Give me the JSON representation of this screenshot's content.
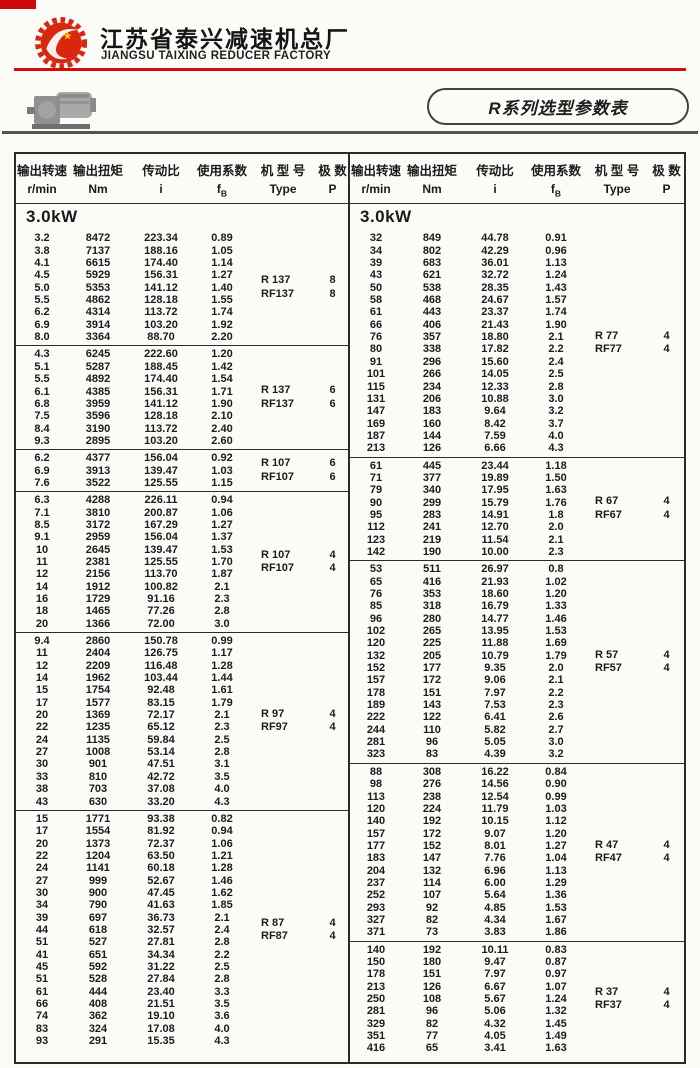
{
  "header": {
    "company_cn": "江苏省泰兴减速机总厂",
    "company_en": "JIANGSU TAIXING REDUCER FACTORY",
    "badge": "R系列选型参数表"
  },
  "table": {
    "power_label": "3.0kW",
    "columns": [
      {
        "cn": "输出转速",
        "unit": "r/min"
      },
      {
        "cn": "输出扭矩",
        "unit": "Nm"
      },
      {
        "cn": "传动比",
        "unit": "i"
      },
      {
        "cn": "使用系数",
        "unit": "fB"
      },
      {
        "cn": "机 型 号",
        "unit": "Type"
      },
      {
        "cn": "极 数",
        "unit": "P"
      }
    ],
    "left_groups": [
      {
        "types": [
          "R 137",
          "RF137"
        ],
        "poles": [
          "8",
          "8"
        ],
        "rows": [
          [
            "3.2",
            "8472",
            "223.34",
            "0.89"
          ],
          [
            "3.8",
            "7137",
            "188.16",
            "1.05"
          ],
          [
            "4.1",
            "6615",
            "174.40",
            "1.14"
          ],
          [
            "4.5",
            "5929",
            "156.31",
            "1.27"
          ],
          [
            "5.0",
            "5353",
            "141.12",
            "1.40"
          ],
          [
            "5.5",
            "4862",
            "128.18",
            "1.55"
          ],
          [
            "6.2",
            "4314",
            "113.72",
            "1.74"
          ],
          [
            "6.9",
            "3914",
            "103.20",
            "1.92"
          ],
          [
            "8.0",
            "3364",
            "88.70",
            "2.20"
          ]
        ]
      },
      {
        "types": [
          "R 137",
          "RF137"
        ],
        "poles": [
          "6",
          "6"
        ],
        "rows": [
          [
            "4.3",
            "6245",
            "222.60",
            "1.20"
          ],
          [
            "5.1",
            "5287",
            "188.45",
            "1.42"
          ],
          [
            "5.5",
            "4892",
            "174.40",
            "1.54"
          ],
          [
            "6.1",
            "4385",
            "156.31",
            "1.71"
          ],
          [
            "6.8",
            "3959",
            "141.12",
            "1.90"
          ],
          [
            "7.5",
            "3596",
            "128.18",
            "2.10"
          ],
          [
            "8.4",
            "3190",
            "113.72",
            "2.40"
          ],
          [
            "9.3",
            "2895",
            "103.20",
            "2.60"
          ]
        ]
      },
      {
        "types": [
          "R 107",
          "RF107"
        ],
        "poles": [
          "6",
          "6"
        ],
        "rows": [
          [
            "6.2",
            "4377",
            "156.04",
            "0.92"
          ],
          [
            "6.9",
            "3913",
            "139.47",
            "1.03"
          ],
          [
            "7.6",
            "3522",
            "125.55",
            "1.15"
          ]
        ]
      },
      {
        "types": [
          "R 107",
          "RF107"
        ],
        "poles": [
          "4",
          "4"
        ],
        "rows": [
          [
            "6.3",
            "4288",
            "226.11",
            "0.94"
          ],
          [
            "7.1",
            "3810",
            "200.87",
            "1.06"
          ],
          [
            "8.5",
            "3172",
            "167.29",
            "1.27"
          ],
          [
            "9.1",
            "2959",
            "156.04",
            "1.37"
          ],
          [
            "10",
            "2645",
            "139.47",
            "1.53"
          ],
          [
            "11",
            "2381",
            "125.55",
            "1.70"
          ],
          [
            "12",
            "2156",
            "113.70",
            "1.87"
          ],
          [
            "14",
            "1912",
            "100.82",
            "2.1"
          ],
          [
            "16",
            "1729",
            "91.16",
            "2.3"
          ],
          [
            "18",
            "1465",
            "77.26",
            "2.8"
          ],
          [
            "20",
            "1366",
            "72.00",
            "3.0"
          ]
        ]
      },
      {
        "types": [
          "R 97",
          "RF97"
        ],
        "poles": [
          "4",
          "4"
        ],
        "rows": [
          [
            "9.4",
            "2860",
            "150.78",
            "0.99"
          ],
          [
            "11",
            "2404",
            "126.75",
            "1.17"
          ],
          [
            "12",
            "2209",
            "116.48",
            "1.28"
          ],
          [
            "14",
            "1962",
            "103.44",
            "1.44"
          ],
          [
            "15",
            "1754",
            "92.48",
            "1.61"
          ],
          [
            "17",
            "1577",
            "83.15",
            "1.79"
          ],
          [
            "20",
            "1369",
            "72.17",
            "2.1"
          ],
          [
            "22",
            "1235",
            "65.12",
            "2.3"
          ],
          [
            "24",
            "1135",
            "59.84",
            "2.5"
          ],
          [
            "27",
            "1008",
            "53.14",
            "2.8"
          ],
          [
            "30",
            "901",
            "47.51",
            "3.1"
          ],
          [
            "33",
            "810",
            "42.72",
            "3.5"
          ],
          [
            "38",
            "703",
            "37.08",
            "4.0"
          ],
          [
            "43",
            "630",
            "33.20",
            "4.3"
          ]
        ]
      },
      {
        "types": [
          "R 87",
          "RF87"
        ],
        "poles": [
          "4",
          "4"
        ],
        "rows": [
          [
            "15",
            "1771",
            "93.38",
            "0.82"
          ],
          [
            "17",
            "1554",
            "81.92",
            "0.94"
          ],
          [
            "20",
            "1373",
            "72.37",
            "1.06"
          ],
          [
            "22",
            "1204",
            "63.50",
            "1.21"
          ],
          [
            "24",
            "1141",
            "60.18",
            "1.28"
          ],
          [
            "27",
            "999",
            "52.67",
            "1.46"
          ],
          [
            "30",
            "900",
            "47.45",
            "1.62"
          ],
          [
            "34",
            "790",
            "41.63",
            "1.85"
          ],
          [
            "39",
            "697",
            "36.73",
            "2.1"
          ],
          [
            "44",
            "618",
            "32.57",
            "2.4"
          ],
          [
            "51",
            "527",
            "27.81",
            "2.8"
          ],
          [
            "41",
            "651",
            "34.34",
            "2.2"
          ],
          [
            "45",
            "592",
            "31.22",
            "2.5"
          ],
          [
            "51",
            "528",
            "27.84",
            "2.8"
          ],
          [
            "61",
            "444",
            "23.40",
            "3.3"
          ],
          [
            "66",
            "408",
            "21.51",
            "3.5"
          ],
          [
            "74",
            "362",
            "19.10",
            "3.6"
          ],
          [
            "83",
            "324",
            "17.08",
            "4.0"
          ],
          [
            "93",
            "291",
            "15.35",
            "4.3"
          ]
        ]
      }
    ],
    "right_groups": [
      {
        "types": [
          "R 77",
          "RF77"
        ],
        "poles": [
          "4",
          "4"
        ],
        "rows": [
          [
            "32",
            "849",
            "44.78",
            "0.91"
          ],
          [
            "34",
            "802",
            "42.29",
            "0.96"
          ],
          [
            "39",
            "683",
            "36.01",
            "1.13"
          ],
          [
            "43",
            "621",
            "32.72",
            "1.24"
          ],
          [
            "50",
            "538",
            "28.35",
            "1.43"
          ],
          [
            "58",
            "468",
            "24.67",
            "1.57"
          ],
          [
            "61",
            "443",
            "23.37",
            "1.74"
          ],
          [
            "66",
            "406",
            "21.43",
            "1.90"
          ],
          [
            "76",
            "357",
            "18.80",
            "2.1"
          ],
          [
            "80",
            "338",
            "17.82",
            "2.2"
          ],
          [
            "91",
            "296",
            "15.60",
            "2.4"
          ],
          [
            "101",
            "266",
            "14.05",
            "2.5"
          ],
          [
            "115",
            "234",
            "12.33",
            "2.8"
          ],
          [
            "131",
            "206",
            "10.88",
            "3.0"
          ],
          [
            "147",
            "183",
            "9.64",
            "3.2"
          ],
          [
            "169",
            "160",
            "8.42",
            "3.7"
          ],
          [
            "187",
            "144",
            "7.59",
            "4.0"
          ],
          [
            "213",
            "126",
            "6.66",
            "4.3"
          ]
        ]
      },
      {
        "types": [
          "R 67",
          "RF67"
        ],
        "poles": [
          "4",
          "4"
        ],
        "rows": [
          [
            "61",
            "445",
            "23.44",
            "1.18"
          ],
          [
            "71",
            "377",
            "19.89",
            "1.50"
          ],
          [
            "79",
            "340",
            "17.95",
            "1.63"
          ],
          [
            "90",
            "299",
            "15.79",
            "1.76"
          ],
          [
            "95",
            "283",
            "14.91",
            "1.8"
          ],
          [
            "112",
            "241",
            "12.70",
            "2.0"
          ],
          [
            "123",
            "219",
            "11.54",
            "2.1"
          ],
          [
            "142",
            "190",
            "10.00",
            "2.3"
          ]
        ]
      },
      {
        "types": [
          "R 57",
          "RF57"
        ],
        "poles": [
          "4",
          "4"
        ],
        "rows": [
          [
            "53",
            "511",
            "26.97",
            "0.8"
          ],
          [
            "65",
            "416",
            "21.93",
            "1.02"
          ],
          [
            "76",
            "353",
            "18.60",
            "1.20"
          ],
          [
            "85",
            "318",
            "16.79",
            "1.33"
          ],
          [
            "96",
            "280",
            "14.77",
            "1.46"
          ],
          [
            "102",
            "265",
            "13.95",
            "1.53"
          ],
          [
            "120",
            "225",
            "11.88",
            "1.69"
          ],
          [
            "132",
            "205",
            "10.79",
            "1.79"
          ],
          [
            "152",
            "177",
            "9.35",
            "2.0"
          ],
          [
            "157",
            "172",
            "9.06",
            "2.1"
          ],
          [
            "178",
            "151",
            "7.97",
            "2.2"
          ],
          [
            "189",
            "143",
            "7.53",
            "2.3"
          ],
          [
            "222",
            "122",
            "6.41",
            "2.6"
          ],
          [
            "244",
            "110",
            "5.82",
            "2.7"
          ],
          [
            "281",
            "96",
            "5.05",
            "3.0"
          ],
          [
            "323",
            "83",
            "4.39",
            "3.2"
          ]
        ]
      },
      {
        "types": [
          "R 47",
          "RF47"
        ],
        "poles": [
          "4",
          "4"
        ],
        "rows": [
          [
            "88",
            "308",
            "16.22",
            "0.84"
          ],
          [
            "98",
            "276",
            "14.56",
            "0.90"
          ],
          [
            "113",
            "238",
            "12.54",
            "0.99"
          ],
          [
            "120",
            "224",
            "11.79",
            "1.03"
          ],
          [
            "140",
            "192",
            "10.15",
            "1.12"
          ],
          [
            "157",
            "172",
            "9.07",
            "1.20"
          ],
          [
            "177",
            "152",
            "8.01",
            "1.27"
          ],
          [
            "183",
            "147",
            "7.76",
            "1.04"
          ],
          [
            "204",
            "132",
            "6.96",
            "1.13"
          ],
          [
            "237",
            "114",
            "6.00",
            "1.29"
          ],
          [
            "252",
            "107",
            "5.64",
            "1.36"
          ],
          [
            "293",
            "92",
            "4.85",
            "1.53"
          ],
          [
            "327",
            "82",
            "4.34",
            "1.67"
          ],
          [
            "371",
            "73",
            "3.83",
            "1.86"
          ]
        ]
      },
      {
        "types": [
          "R 37",
          "RF37"
        ],
        "poles": [
          "4",
          "4"
        ],
        "rows": [
          [
            "140",
            "192",
            "10.11",
            "0.83"
          ],
          [
            "150",
            "180",
            "9.47",
            "0.87"
          ],
          [
            "178",
            "151",
            "7.97",
            "0.97"
          ],
          [
            "213",
            "126",
            "6.67",
            "1.07"
          ],
          [
            "250",
            "108",
            "5.67",
            "1.24"
          ],
          [
            "281",
            "96",
            "5.06",
            "1.32"
          ],
          [
            "329",
            "82",
            "4.32",
            "1.45"
          ],
          [
            "351",
            "77",
            "4.05",
            "1.49"
          ],
          [
            "416",
            "65",
            "3.41",
            "1.63"
          ]
        ]
      }
    ]
  }
}
